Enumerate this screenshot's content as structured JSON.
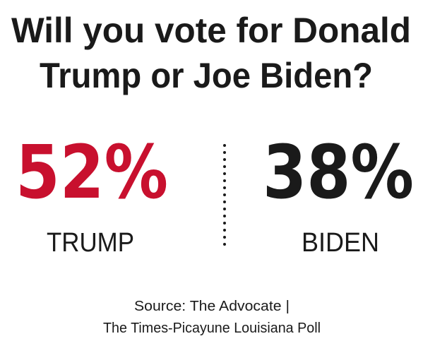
{
  "title": {
    "lines": [
      "Will you vote for Donald",
      "Trump or Joe Biden?"
    ]
  },
  "results": [
    {
      "figure": "52%",
      "name": "TRUMP",
      "color": "#c8102e"
    },
    {
      "figure": "38%",
      "name": "BIDEN",
      "color": "#1a1a1a"
    }
  ],
  "source": {
    "lines": [
      "Source: The Advocate  |",
      "The Times-Picayune Louisiana Poll"
    ]
  }
}
